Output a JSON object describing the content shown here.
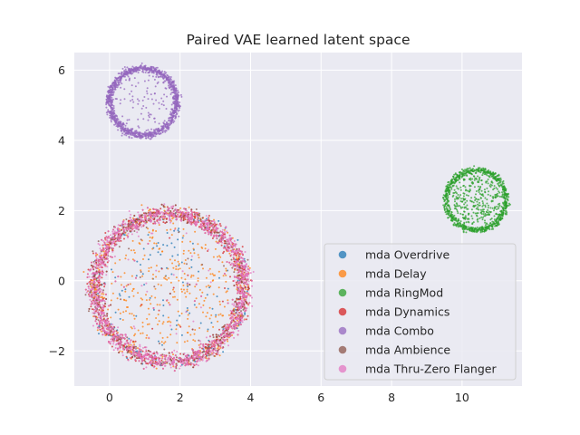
{
  "chart_data": {
    "type": "scatter",
    "title": "Paired VAE learned latent space",
    "xlabel": "",
    "ylabel": "",
    "xlim": [
      -1.0,
      11.7
    ],
    "ylim": [
      -3.0,
      6.5
    ],
    "xticks": [
      0,
      2,
      4,
      6,
      8,
      10
    ],
    "yticks": [
      -2,
      0,
      2,
      4,
      6
    ],
    "xtick_labels": [
      "0",
      "2",
      "4",
      "6",
      "8",
      "10"
    ],
    "ytick_labels": [
      "−2",
      "0",
      "2",
      "4",
      "6"
    ],
    "grid": true,
    "background": "#eaeaf2",
    "legend_position": "lower right",
    "series": [
      {
        "name": "mda Overdrive",
        "color": "#1f77b4",
        "clusters": [
          {
            "cx": 1.7,
            "cy": -0.2,
            "r": 2.1,
            "count": 240,
            "ring_fraction": 0.7
          }
        ]
      },
      {
        "name": "mda Delay",
        "color": "#ff7f0e",
        "clusters": [
          {
            "cx": 1.7,
            "cy": -0.2,
            "r": 2.1,
            "count": 620,
            "ring_fraction": 0.55
          }
        ]
      },
      {
        "name": "mda RingMod",
        "color": "#2ca02c",
        "clusters": [
          {
            "cx": 10.4,
            "cy": 2.3,
            "r": 0.85,
            "count": 1100,
            "ring_fraction": 0.72
          }
        ]
      },
      {
        "name": "mda Dynamics",
        "color": "#d62728",
        "clusters": [
          {
            "cx": 1.7,
            "cy": -0.2,
            "r": 2.1,
            "count": 1400,
            "ring_fraction": 0.98
          }
        ]
      },
      {
        "name": "mda Combo",
        "color": "#9467bd",
        "clusters": [
          {
            "cx": 0.95,
            "cy": 5.1,
            "r": 0.95,
            "count": 1300,
            "ring_fraction": 0.93
          }
        ]
      },
      {
        "name": "mda Ambience",
        "color": "#8c564b",
        "clusters": [
          {
            "cx": 1.7,
            "cy": -0.2,
            "r": 2.1,
            "count": 500,
            "ring_fraction": 0.97
          }
        ]
      },
      {
        "name": "mda Thru-Zero Flanger",
        "color": "#e377c2",
        "clusters": [
          {
            "cx": 1.7,
            "cy": -0.2,
            "r": 2.1,
            "count": 1500,
            "ring_fraction": 0.97
          }
        ]
      }
    ]
  }
}
